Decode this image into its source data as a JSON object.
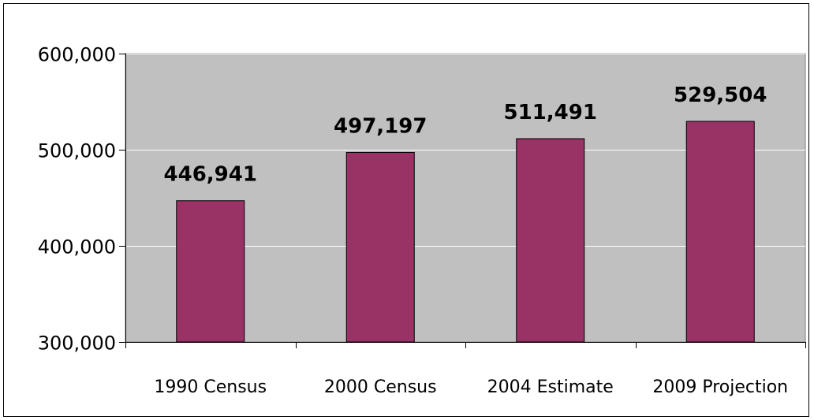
{
  "chart_data": {
    "type": "bar",
    "categories": [
      "1990 Census",
      "2000 Census",
      "2004 Estimate",
      "2009 Projection"
    ],
    "values": [
      446941,
      497197,
      511491,
      529504
    ],
    "data_labels": [
      "446,941",
      "497,197",
      "511,491",
      "529,504"
    ],
    "title": "",
    "xlabel": "",
    "ylabel": "",
    "ylim": [
      300000,
      600000
    ],
    "yticks": [
      300000,
      400000,
      500000,
      600000
    ],
    "ytick_labels": [
      "300,000",
      "400,000",
      "500,000",
      "600,000"
    ],
    "grid": true,
    "legend": "none",
    "colors": {
      "bar": "#993366",
      "plot_background": "#c0c0c0",
      "gridline": "#ffffff"
    }
  }
}
